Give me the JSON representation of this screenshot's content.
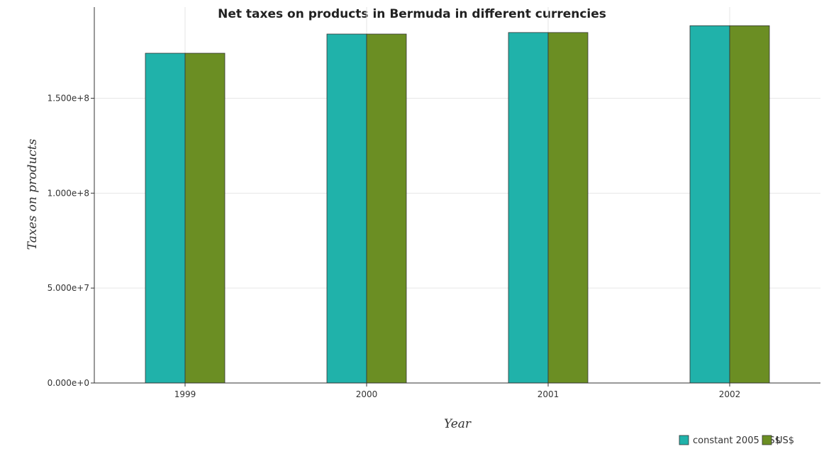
{
  "chart_data": {
    "type": "bar",
    "title": "Net taxes on products in Bermuda in different currencies",
    "xlabel": "Year",
    "ylabel": "Taxes on products",
    "categories": [
      "1999",
      "2000",
      "2001",
      "2002"
    ],
    "series": [
      {
        "name": "constant 2005 US$",
        "color": "#20b2aa",
        "values": [
          173700000,
          183800000,
          184600000,
          188200000
        ]
      },
      {
        "name": "US$",
        "color": "#6b8e23",
        "values": [
          173700000,
          183800000,
          184600000,
          188200000
        ]
      }
    ],
    "ylim": [
      0,
      198000000
    ],
    "yticks": [
      0,
      50000000,
      100000000,
      150000000
    ],
    "ytick_labels": [
      "0.000e+0",
      "5.000e+7",
      "1.000e+8",
      "1.500e+8"
    ],
    "grid": true,
    "legend_position": "bottom-right"
  }
}
